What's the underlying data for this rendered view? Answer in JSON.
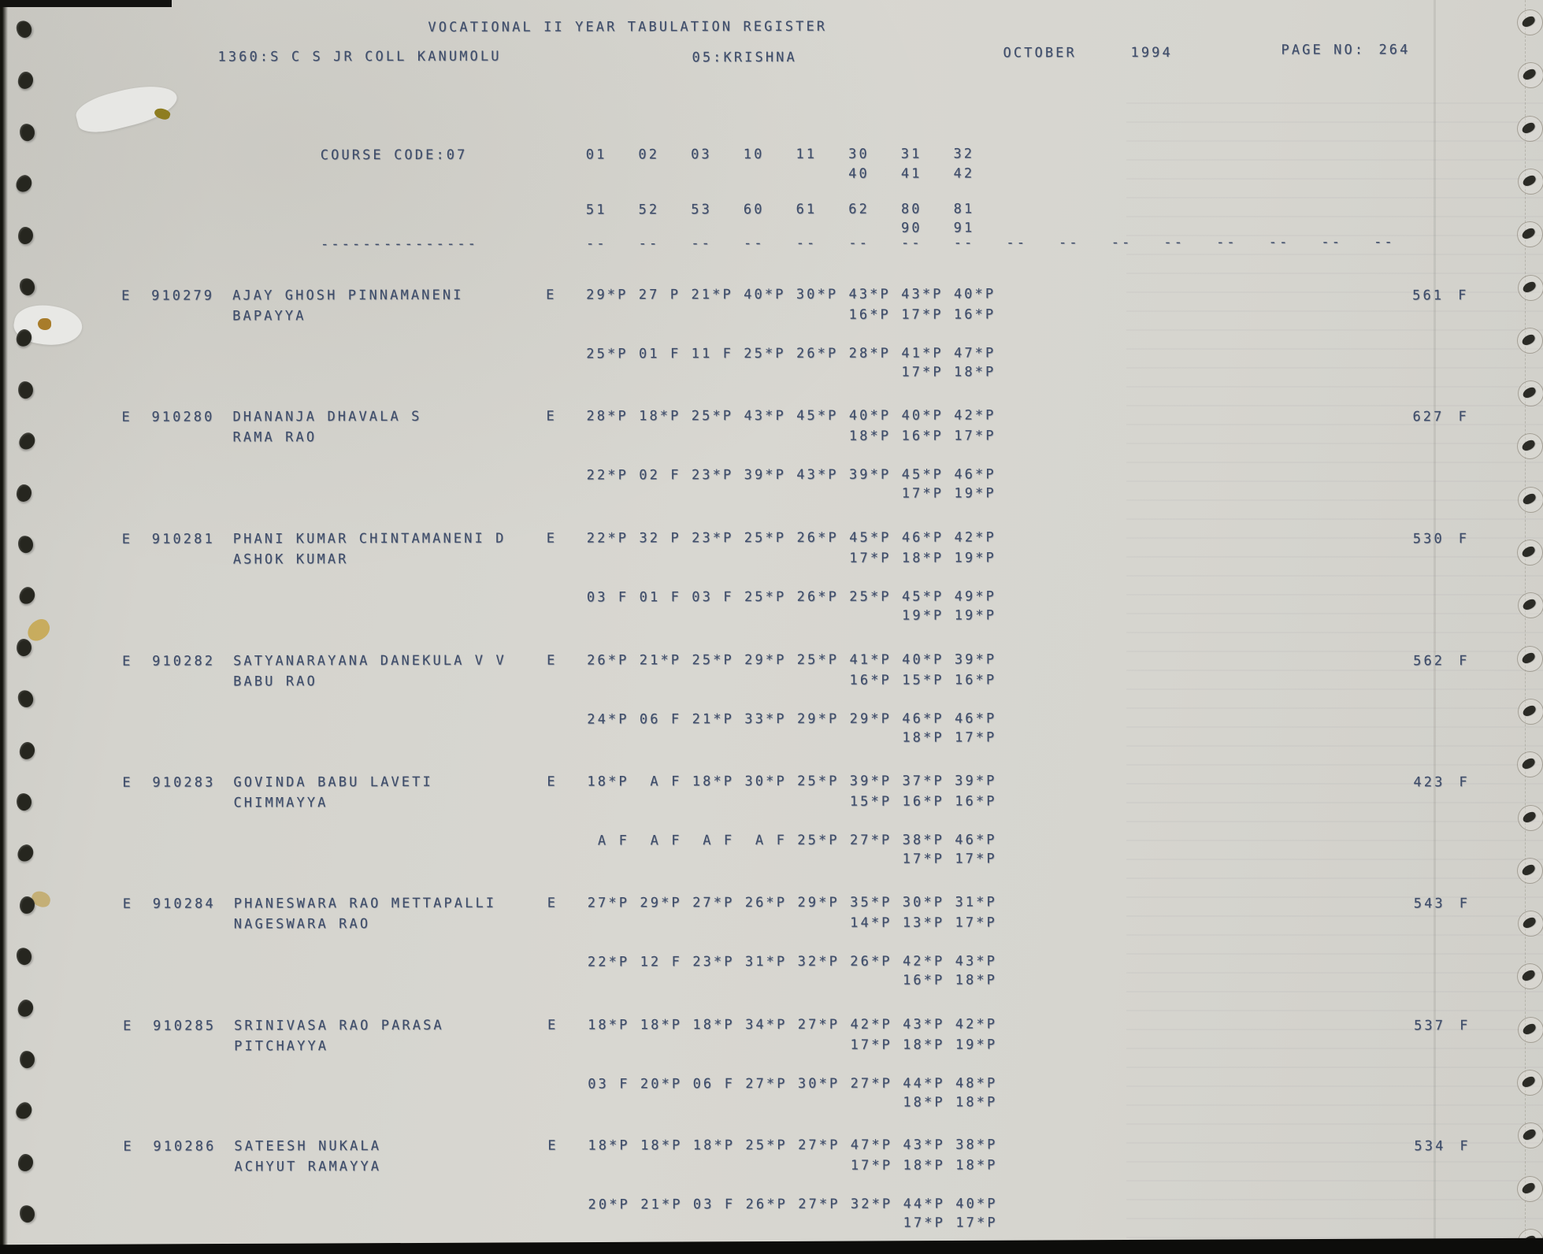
{
  "page": {
    "title": "VOCATIONAL II YEAR TABULATION REGISTER",
    "college": "1360:S C S JR COLL KANUMOLU",
    "district": "05:KRISHNA",
    "month": "OCTOBER",
    "year": "1994",
    "page_no_label": "PAGE NO:",
    "page_no": "264"
  },
  "course": {
    "code_label": "COURSE CODE:07",
    "subject_row1": [
      "01",
      "02",
      "03",
      "10",
      "11",
      "30",
      "31",
      "32"
    ],
    "subject_row1_cont": [
      "40",
      "41",
      "42"
    ],
    "subject_row2": [
      "51",
      "52",
      "53",
      "60",
      "61",
      "62",
      "80",
      "81"
    ],
    "subject_row2_cont": [
      "90",
      "91"
    ],
    "separator_left": "---------------",
    "separator_cell": "--",
    "separator_cell_count": 16
  },
  "students": [
    {
      "flag": "E",
      "regno": "910279",
      "name": "AJAY GHOSH PINNAMANENI",
      "father_name": "BAPAYYA",
      "medium": "E",
      "marks_row1": [
        "29*P",
        "27 P",
        "21*P",
        "40*P",
        "30*P",
        "43*P",
        "43*P",
        "40*P"
      ],
      "marks_row1_cont": [
        "16*P",
        "17*P",
        "16*P"
      ],
      "marks_row2": [
        "25*P",
        "01 F",
        "11 F",
        "25*P",
        "26*P",
        "28*P",
        "41*P",
        "47*P"
      ],
      "marks_row2_cont": [
        "17*P",
        "18*P"
      ],
      "total": "561",
      "result": "F"
    },
    {
      "flag": "E",
      "regno": "910280",
      "name": "DHANANJA DHAVALA S",
      "father_name": "RAMA RAO",
      "medium": "E",
      "marks_row1": [
        "28*P",
        "18*P",
        "25*P",
        "43*P",
        "45*P",
        "40*P",
        "40*P",
        "42*P"
      ],
      "marks_row1_cont": [
        "18*P",
        "16*P",
        "17*P"
      ],
      "marks_row2": [
        "22*P",
        "02 F",
        "23*P",
        "39*P",
        "43*P",
        "39*P",
        "45*P",
        "46*P"
      ],
      "marks_row2_cont": [
        "17*P",
        "19*P"
      ],
      "total": "627",
      "result": "F"
    },
    {
      "flag": "E",
      "regno": "910281",
      "name": "PHANI KUMAR CHINTAMANENI D",
      "father_name": "ASHOK KUMAR",
      "medium": "E",
      "marks_row1": [
        "22*P",
        "32 P",
        "23*P",
        "25*P",
        "26*P",
        "45*P",
        "46*P",
        "42*P"
      ],
      "marks_row1_cont": [
        "17*P",
        "18*P",
        "19*P"
      ],
      "marks_row2": [
        "03 F",
        "01 F",
        "03 F",
        "25*P",
        "26*P",
        "25*P",
        "45*P",
        "49*P"
      ],
      "marks_row2_cont": [
        "19*P",
        "19*P"
      ],
      "total": "530",
      "result": "F"
    },
    {
      "flag": "E",
      "regno": "910282",
      "name": "SATYANARAYANA DANEKULA V V",
      "father_name": "BABU RAO",
      "medium": "E",
      "marks_row1": [
        "26*P",
        "21*P",
        "25*P",
        "29*P",
        "25*P",
        "41*P",
        "40*P",
        "39*P"
      ],
      "marks_row1_cont": [
        "16*P",
        "15*P",
        "16*P"
      ],
      "marks_row2": [
        "24*P",
        "06 F",
        "21*P",
        "33*P",
        "29*P",
        "29*P",
        "46*P",
        "46*P"
      ],
      "marks_row2_cont": [
        "18*P",
        "17*P"
      ],
      "total": "562",
      "result": "F"
    },
    {
      "flag": "E",
      "regno": "910283",
      "name": "GOVINDA BABU LAVETI",
      "father_name": "CHIMMAYYA",
      "medium": "E",
      "marks_row1": [
        "18*P",
        "A F",
        "18*P",
        "30*P",
        "25*P",
        "39*P",
        "37*P",
        "39*P"
      ],
      "marks_row1_cont": [
        "15*P",
        "16*P",
        "16*P"
      ],
      "marks_row2": [
        "A F",
        "A F",
        "A F",
        "A F",
        "25*P",
        "27*P",
        "38*P",
        "46*P"
      ],
      "marks_row2_cont": [
        "17*P",
        "17*P"
      ],
      "total": "423",
      "result": "F"
    },
    {
      "flag": "E",
      "regno": "910284",
      "name": "PHANESWARA RAO METTAPALLI",
      "father_name": "NAGESWARA RAO",
      "medium": "E",
      "marks_row1": [
        "27*P",
        "29*P",
        "27*P",
        "26*P",
        "29*P",
        "35*P",
        "30*P",
        "31*P"
      ],
      "marks_row1_cont": [
        "14*P",
        "13*P",
        "17*P"
      ],
      "marks_row2": [
        "22*P",
        "12 F",
        "23*P",
        "31*P",
        "32*P",
        "26*P",
        "42*P",
        "43*P"
      ],
      "marks_row2_cont": [
        "16*P",
        "18*P"
      ],
      "total": "543",
      "result": "F"
    },
    {
      "flag": "E",
      "regno": "910285",
      "name": "SRINIVASA RAO PARASA",
      "father_name": "PITCHAYYA",
      "medium": "E",
      "marks_row1": [
        "18*P",
        "18*P",
        "18*P",
        "34*P",
        "27*P",
        "42*P",
        "43*P",
        "42*P"
      ],
      "marks_row1_cont": [
        "17*P",
        "18*P",
        "19*P"
      ],
      "marks_row2": [
        "03 F",
        "20*P",
        "06 F",
        "27*P",
        "30*P",
        "27*P",
        "44*P",
        "48*P"
      ],
      "marks_row2_cont": [
        "18*P",
        "18*P"
      ],
      "total": "537",
      "result": "F"
    },
    {
      "flag": "E",
      "regno": "910286",
      "name": "SATEESH NUKALA",
      "father_name": "ACHYUT RAMAYYA",
      "medium": "E",
      "marks_row1": [
        "18*P",
        "18*P",
        "18*P",
        "25*P",
        "27*P",
        "47*P",
        "43*P",
        "38*P"
      ],
      "marks_row1_cont": [
        "17*P",
        "18*P",
        "18*P"
      ],
      "marks_row2": [
        "20*P",
        "21*P",
        "03 F",
        "26*P",
        "27*P",
        "32*P",
        "44*P",
        "40*P"
      ],
      "marks_row2_cont": [
        "17*P",
        "17*P"
      ],
      "total": "534",
      "result": "F"
    }
  ],
  "colors": {
    "ink": "#3e4d6a",
    "paper": "#d6d5cf"
  }
}
